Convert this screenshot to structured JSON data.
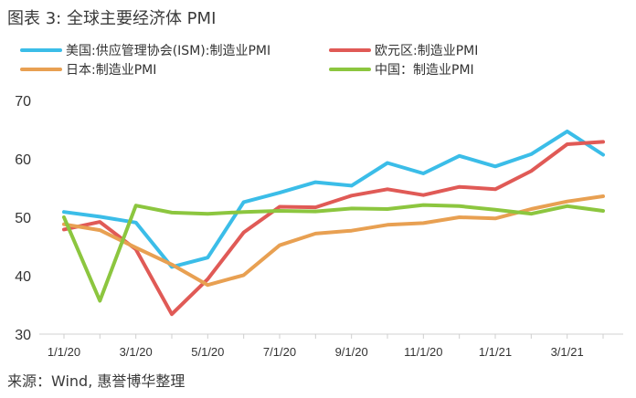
{
  "title": "图表 3: 全球主要经济体 PMI",
  "source": "来源：Wind, 惠誉博华整理",
  "chart_data": {
    "type": "line",
    "xlabel": "",
    "ylabel": "",
    "ylim": [
      30,
      70
    ],
    "yticks": [
      30,
      40,
      50,
      60,
      70
    ],
    "grid": false,
    "legend_position": "top",
    "x": [
      "2020-01",
      "2020-02",
      "2020-03",
      "2020-04",
      "2020-05",
      "2020-06",
      "2020-07",
      "2020-08",
      "2020-09",
      "2020-10",
      "2020-11",
      "2020-12",
      "2021-01",
      "2021-02",
      "2021-03",
      "2021-04"
    ],
    "xtick_labels": [
      {
        "index": 0,
        "label": "1/1/20"
      },
      {
        "index": 2,
        "label": "3/1/20"
      },
      {
        "index": 4,
        "label": "5/1/20"
      },
      {
        "index": 6,
        "label": "7/1/20"
      },
      {
        "index": 8,
        "label": "9/1/20"
      },
      {
        "index": 10,
        "label": "11/1/20"
      },
      {
        "index": 12,
        "label": "1/1/21"
      },
      {
        "index": 14,
        "label": "3/1/21"
      }
    ],
    "series": [
      {
        "name": "美国:供应管理协会(ISM):制造业PMI",
        "color": "#3bbde8",
        "values": [
          50.9,
          50.1,
          49.1,
          41.5,
          43.1,
          52.6,
          54.2,
          56.0,
          55.4,
          59.3,
          57.5,
          60.5,
          58.7,
          60.8,
          64.7,
          60.7
        ]
      },
      {
        "name": "欧元区:制造业PMI",
        "color": "#e05a56",
        "values": [
          47.9,
          49.2,
          44.5,
          33.4,
          39.4,
          47.4,
          51.8,
          51.7,
          53.7,
          54.8,
          53.8,
          55.2,
          54.8,
          57.9,
          62.5,
          62.9
        ]
      },
      {
        "name": "日本:制造业PMI",
        "color": "#e8a052",
        "values": [
          48.8,
          47.8,
          44.8,
          41.9,
          38.4,
          40.1,
          45.2,
          47.2,
          47.7,
          48.7,
          49.0,
          50.0,
          49.8,
          51.4,
          52.7,
          53.6
        ]
      },
      {
        "name": "中国：制造业PMI",
        "color": "#8cc63f",
        "values": [
          50.0,
          35.7,
          52.0,
          50.8,
          50.6,
          50.9,
          51.1,
          51.0,
          51.5,
          51.4,
          52.1,
          51.9,
          51.3,
          50.6,
          51.9,
          51.1
        ]
      }
    ]
  }
}
